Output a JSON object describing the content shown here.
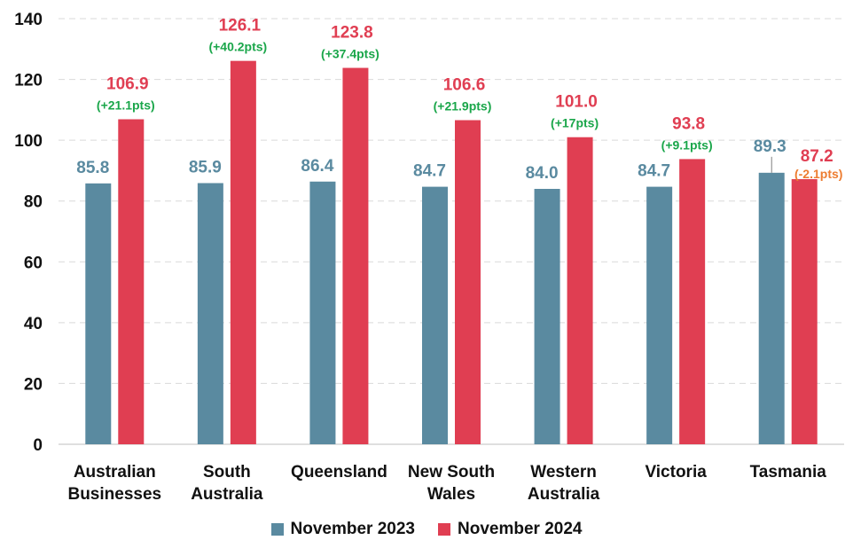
{
  "colors": {
    "series1": "#5a8aa0",
    "series2": "#e03e52",
    "positive_change": "#1aa64a",
    "negative_change": "#ed7d31",
    "gridline": "#d9d9d9",
    "axis": "#bfbfbf"
  },
  "chart_data": {
    "type": "bar",
    "title": "",
    "xlabel": "",
    "ylabel": "",
    "ylim": [
      0,
      140
    ],
    "yticks": [
      0,
      20,
      40,
      60,
      80,
      100,
      120,
      140
    ],
    "grid": true,
    "legend_position": "bottom",
    "categories": [
      [
        "Australian",
        "Businesses"
      ],
      [
        "South",
        "Australia"
      ],
      [
        "Queensland"
      ],
      [
        "New South",
        "Wales"
      ],
      [
        "Western",
        "Australia"
      ],
      [
        "Victoria"
      ],
      [
        "Tasmania"
      ]
    ],
    "series": [
      {
        "name": "November 2023",
        "values": [
          85.8,
          85.9,
          86.4,
          84.7,
          84.0,
          84.7,
          89.3
        ],
        "labels": [
          "85.8",
          "85.9",
          "86.4",
          "84.7",
          "84.0",
          "84.7",
          "89.3"
        ]
      },
      {
        "name": "November 2024",
        "values": [
          106.9,
          126.1,
          123.8,
          106.6,
          101.0,
          93.8,
          87.2
        ],
        "labels": [
          "106.9",
          "126.1",
          "123.8",
          "106.6",
          "101.0",
          "93.8",
          "87.2"
        ]
      }
    ],
    "changes": [
      "(+21.1pts)",
      "(+40.2pts)",
      "(+37.4pts)",
      "(+21.9pts)",
      "(+17pts)",
      "(+9.1pts)",
      "(-2.1pts)"
    ]
  }
}
